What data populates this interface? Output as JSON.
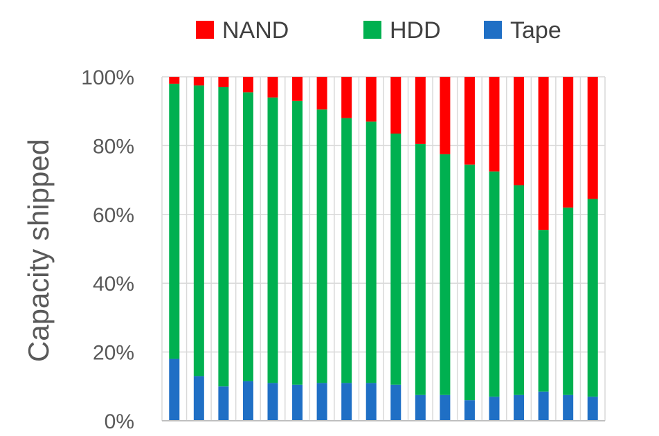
{
  "chart_data": {
    "type": "bar",
    "stacked": true,
    "normalized": true,
    "title": "",
    "xlabel": "",
    "ylabel": "Capacity shipped",
    "ylim": [
      0,
      100
    ],
    "y_ticks": [
      "0%",
      "20%",
      "40%",
      "60%",
      "80%",
      "100%"
    ],
    "grid": true,
    "legend_position": "top",
    "categories": [
      "",
      "",
      "",
      "",
      "",
      "",
      "",
      "",
      "",
      "",
      "",
      "",
      "",
      "",
      "",
      "",
      "",
      ""
    ],
    "series": [
      {
        "name": "Tape",
        "color": "#1F6FC5",
        "values": [
          18,
          13,
          10,
          11.5,
          11,
          10.5,
          11,
          11,
          11,
          10.5,
          7.5,
          7.5,
          6,
          7,
          7.5,
          8.5,
          7.5,
          7
        ]
      },
      {
        "name": "HDD",
        "color": "#00B050",
        "values": [
          80,
          84.5,
          87,
          84,
          83,
          82.5,
          79.5,
          77,
          76,
          73,
          73,
          70,
          68.5,
          65.5,
          61,
          47,
          54.5,
          57.5
        ]
      },
      {
        "name": "NAND",
        "color": "#FF0000",
        "values": [
          2,
          2.5,
          3,
          4.5,
          6,
          7,
          9.5,
          12,
          13,
          16.5,
          19.5,
          22.5,
          25.5,
          27.5,
          31.5,
          44.5,
          38,
          35.5
        ]
      }
    ],
    "legend_order": [
      "NAND",
      "HDD",
      "Tape"
    ]
  }
}
